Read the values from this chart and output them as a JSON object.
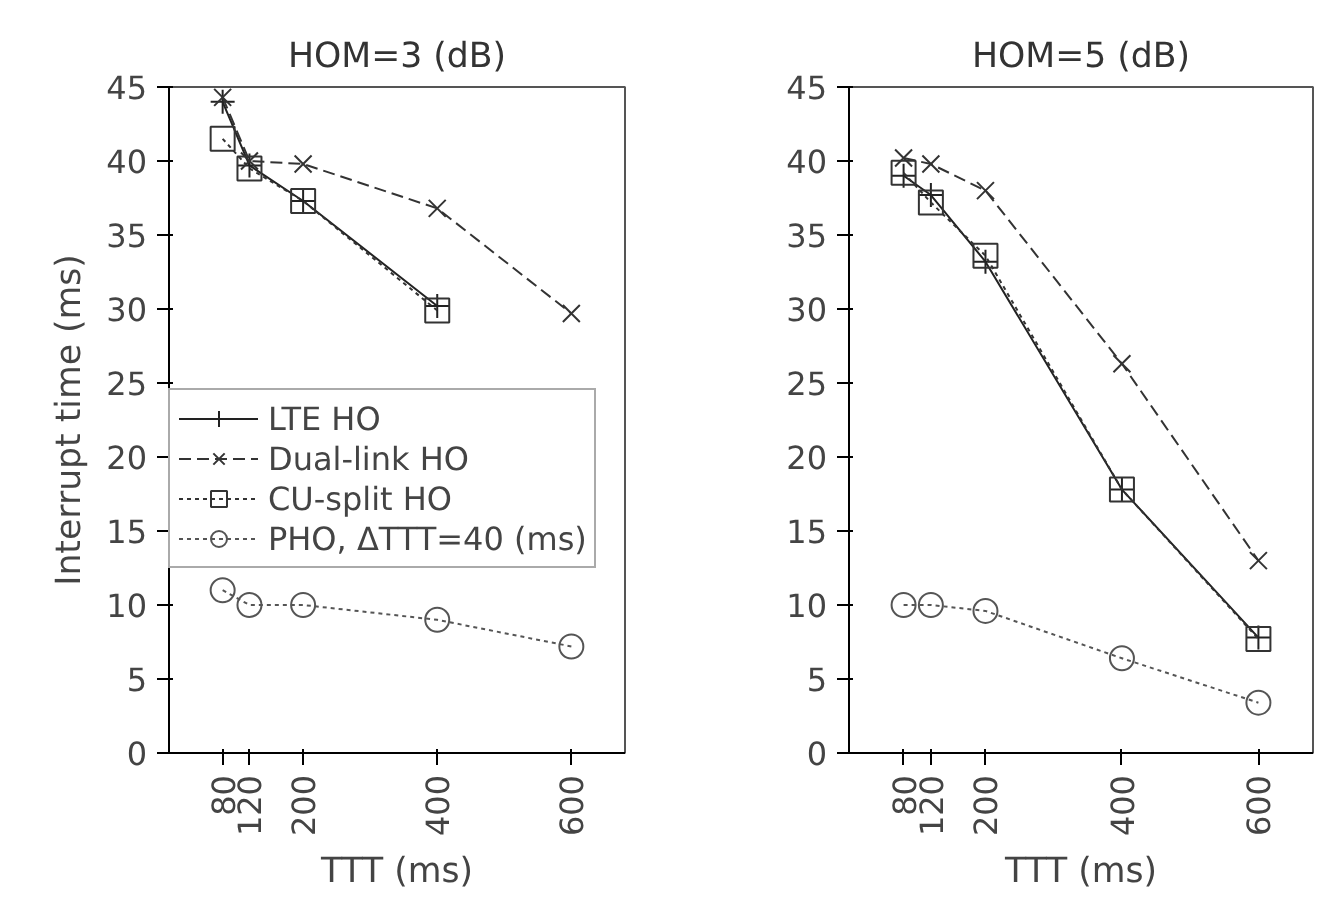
{
  "chart_data": [
    {
      "type": "line",
      "title": "HOM=3 (dB)",
      "xlabel": "TTT (ms)",
      "ylabel": "Interrupt time (ms)",
      "x": [
        80,
        120,
        200,
        400,
        600
      ],
      "xlim": [
        0,
        680
      ],
      "ylim": [
        0,
        45
      ],
      "xticks": [
        80,
        120,
        200,
        400,
        600
      ],
      "yticks": [
        0,
        5,
        10,
        15,
        20,
        25,
        30,
        35,
        40,
        45
      ],
      "grid": false,
      "legend": "left",
      "series": [
        {
          "name": "LTE HO",
          "color": "#222222",
          "marker": "cross",
          "line_style": "solid",
          "values": [
            44,
            39.7,
            37.3,
            30.2,
            null
          ]
        },
        {
          "name": "Dual-link HO",
          "color": "#333333",
          "marker": "x",
          "line_style": "dashed",
          "values": [
            44.3,
            40,
            39.8,
            36.8,
            29.7
          ]
        },
        {
          "name": "CU-split HO",
          "color": "#333333",
          "marker": "square",
          "line_style": "dotted",
          "values": [
            41.5,
            39.5,
            37.3,
            29.9,
            null
          ]
        },
        {
          "name": "PHO, ΔTTT=40 (ms)",
          "color": "#555555",
          "marker": "circle",
          "line_style": "dotted",
          "values": [
            11,
            10,
            10,
            9,
            7.2
          ]
        }
      ]
    },
    {
      "type": "line",
      "title": "HOM=5 (dB)",
      "xlabel": "TTT (ms)",
      "x": [
        80,
        120,
        200,
        400,
        600
      ],
      "xlim": [
        0,
        680
      ],
      "ylim": [
        0,
        45
      ],
      "xticks": [
        80,
        120,
        200,
        400,
        600
      ],
      "yticks": [
        0,
        5,
        10,
        15,
        20,
        25,
        30,
        35,
        40,
        45
      ],
      "grid": false,
      "series": [
        {
          "color": "#222222",
          "marker": "cross",
          "line_style": "solid",
          "values": [
            39,
            37.7,
            33.2,
            17.8,
            7.8
          ]
        },
        {
          "color": "#333333",
          "marker": "x",
          "line_style": "dashed",
          "values": [
            40.2,
            39.8,
            38,
            26.3,
            13
          ]
        },
        {
          "color": "#333333",
          "marker": "square",
          "line_style": "dotted",
          "values": [
            39.2,
            37.2,
            33.6,
            17.8,
            7.7
          ]
        },
        {
          "color": "#555555",
          "marker": "circle",
          "line_style": "dotted",
          "values": [
            10,
            10,
            9.6,
            6.4,
            3.4
          ]
        }
      ]
    }
  ]
}
